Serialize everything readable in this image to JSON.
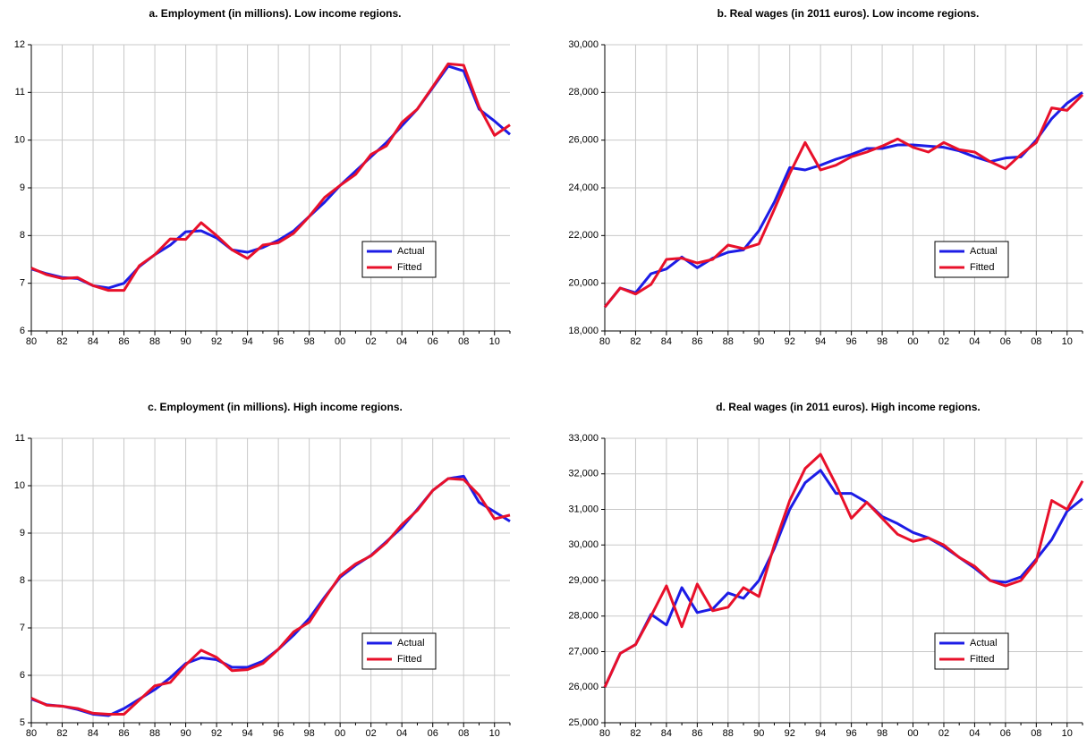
{
  "chart_data": [
    {
      "type": "line",
      "title": "a. Employment (in millions). Low income regions.",
      "categories": [
        "80",
        null,
        "82",
        null,
        "84",
        null,
        "86",
        null,
        "88",
        null,
        "90",
        null,
        "92",
        null,
        "94",
        null,
        "96",
        null,
        "98",
        null,
        "00",
        null,
        "02",
        null,
        "04",
        null,
        "06",
        null,
        "08",
        null,
        "10",
        null
      ],
      "series": [
        {
          "name": "Actual",
          "color": "#1c1ce6",
          "values": [
            7.3,
            7.2,
            7.12,
            7.1,
            6.95,
            6.9,
            7.0,
            7.35,
            7.6,
            7.8,
            8.08,
            8.1,
            7.95,
            7.7,
            7.65,
            7.75,
            7.9,
            8.1,
            8.4,
            8.7,
            9.05,
            9.35,
            9.65,
            9.95,
            10.3,
            10.65,
            11.1,
            11.55,
            11.45,
            10.65,
            10.4,
            10.12
          ]
        },
        {
          "name": "Fitted",
          "color": "#e8102a",
          "values": [
            7.32,
            7.18,
            7.1,
            7.12,
            6.95,
            6.85,
            6.85,
            7.37,
            7.6,
            7.93,
            7.92,
            8.27,
            8.0,
            7.7,
            7.52,
            7.8,
            7.85,
            8.05,
            8.4,
            8.8,
            9.05,
            9.28,
            9.7,
            9.88,
            10.37,
            10.65,
            11.12,
            11.6,
            11.57,
            10.7,
            10.1,
            10.32
          ]
        }
      ],
      "ylim": [
        6,
        12
      ],
      "yticks": [
        6,
        7,
        8,
        9,
        10,
        11,
        12
      ],
      "grid": true,
      "legend": "lower right"
    },
    {
      "type": "line",
      "title": "b. Real wages (in 2011 euros). Low income regions.",
      "categories": [
        "80",
        null,
        "82",
        null,
        "84",
        null,
        "86",
        null,
        "88",
        null,
        "90",
        null,
        "92",
        null,
        "94",
        null,
        "96",
        null,
        "98",
        null,
        "00",
        null,
        "02",
        null,
        "04",
        null,
        "06",
        null,
        "08",
        null,
        "10",
        null
      ],
      "series": [
        {
          "name": "Actual",
          "color": "#1c1ce6",
          "values": [
            19000,
            19800,
            19600,
            20400,
            20600,
            21100,
            20650,
            21050,
            21300,
            21400,
            22200,
            23400,
            24850,
            24750,
            24950,
            25200,
            25400,
            25650,
            25650,
            25800,
            25800,
            25750,
            25700,
            25550,
            25300,
            25100,
            25250,
            25300,
            26000,
            26900,
            27550,
            28000
          ]
        },
        {
          "name": "Fitted",
          "color": "#e8102a",
          "values": [
            19000,
            19800,
            19550,
            19950,
            21000,
            21050,
            20850,
            21000,
            21600,
            21450,
            21650,
            23100,
            24600,
            25900,
            24750,
            24950,
            25300,
            25500,
            25750,
            26050,
            25700,
            25500,
            25900,
            25600,
            25500,
            25100,
            24800,
            25400,
            25900,
            27350,
            27250,
            27900
          ]
        }
      ],
      "ylim": [
        18000,
        30000
      ],
      "yticks": [
        {
          "value": 18000,
          "label": "18,000"
        },
        {
          "value": 20000,
          "label": "20,000"
        },
        {
          "value": 22000,
          "label": "22,000"
        },
        {
          "value": 24000,
          "label": "24,000"
        },
        {
          "value": 26000,
          "label": "26,000"
        },
        {
          "value": 28000,
          "label": "28,000"
        },
        {
          "value": 30000,
          "label": "30,000"
        }
      ],
      "grid": true,
      "legend": "lower right"
    },
    {
      "type": "line",
      "title": "c. Employment (in millions). High income regions.",
      "categories": [
        "80",
        null,
        "82",
        null,
        "84",
        null,
        "86",
        null,
        "88",
        null,
        "90",
        null,
        "92",
        null,
        "94",
        null,
        "96",
        null,
        "98",
        null,
        "00",
        null,
        "02",
        null,
        "04",
        null,
        "06",
        null,
        "08",
        null,
        "10",
        null
      ],
      "series": [
        {
          "name": "Actual",
          "color": "#1c1ce6",
          "values": [
            5.5,
            5.38,
            5.35,
            5.28,
            5.18,
            5.15,
            5.3,
            5.5,
            5.7,
            5.95,
            6.25,
            6.37,
            6.33,
            6.17,
            6.17,
            6.3,
            6.55,
            6.85,
            7.2,
            7.65,
            8.07,
            8.32,
            8.53,
            8.82,
            9.12,
            9.5,
            9.9,
            10.15,
            10.2,
            9.65,
            9.45,
            9.25
          ]
        },
        {
          "name": "Fitted",
          "color": "#e8102a",
          "values": [
            5.52,
            5.37,
            5.35,
            5.3,
            5.2,
            5.18,
            5.18,
            5.48,
            5.78,
            5.85,
            6.22,
            6.53,
            6.38,
            6.1,
            6.12,
            6.25,
            6.55,
            6.92,
            7.12,
            7.62,
            8.1,
            8.35,
            8.52,
            8.8,
            9.18,
            9.48,
            9.9,
            10.15,
            10.13,
            9.8,
            9.3,
            9.38
          ]
        }
      ],
      "ylim": [
        5,
        11
      ],
      "yticks": [
        5,
        6,
        7,
        8,
        9,
        10,
        11
      ],
      "grid": true,
      "legend": "lower right"
    },
    {
      "type": "line",
      "title": "d. Real wages (in 2011 euros). High income regions.",
      "categories": [
        "80",
        null,
        "82",
        null,
        "84",
        null,
        "86",
        null,
        "88",
        null,
        "90",
        null,
        "92",
        null,
        "94",
        null,
        "96",
        null,
        "98",
        null,
        "00",
        null,
        "02",
        null,
        "04",
        null,
        "06",
        null,
        "08",
        null,
        "10",
        null
      ],
      "series": [
        {
          "name": "Actual",
          "color": "#1c1ce6",
          "values": [
            26000,
            26950,
            27200,
            28050,
            27750,
            28800,
            28100,
            28200,
            28650,
            28500,
            29000,
            29900,
            31000,
            31750,
            32100,
            31450,
            31450,
            31200,
            30800,
            30600,
            30350,
            30200,
            29950,
            29650,
            29350,
            29000,
            28950,
            29100,
            29600,
            30150,
            30950,
            31300
          ]
        },
        {
          "name": "Fitted",
          "color": "#e8102a",
          "values": [
            26000,
            26950,
            27200,
            28000,
            28850,
            27700,
            28900,
            28150,
            28250,
            28800,
            28550,
            30000,
            31250,
            32150,
            32550,
            31700,
            30750,
            31200,
            30750,
            30300,
            30100,
            30200,
            30000,
            29650,
            29400,
            29000,
            28850,
            29000,
            29550,
            31250,
            31000,
            31800
          ]
        }
      ],
      "ylim": [
        25000,
        33000
      ],
      "yticks": [
        {
          "value": 25000,
          "label": "25,000"
        },
        {
          "value": 26000,
          "label": "26,000"
        },
        {
          "value": 27000,
          "label": "27,000"
        },
        {
          "value": 28000,
          "label": "28,000"
        },
        {
          "value": 29000,
          "label": "29,000"
        },
        {
          "value": 30000,
          "label": "30,000"
        },
        {
          "value": 31000,
          "label": "31,000"
        },
        {
          "value": 32000,
          "label": "32,000"
        },
        {
          "value": 33000,
          "label": "33,000"
        }
      ],
      "grid": true,
      "legend": "lower right"
    }
  ]
}
